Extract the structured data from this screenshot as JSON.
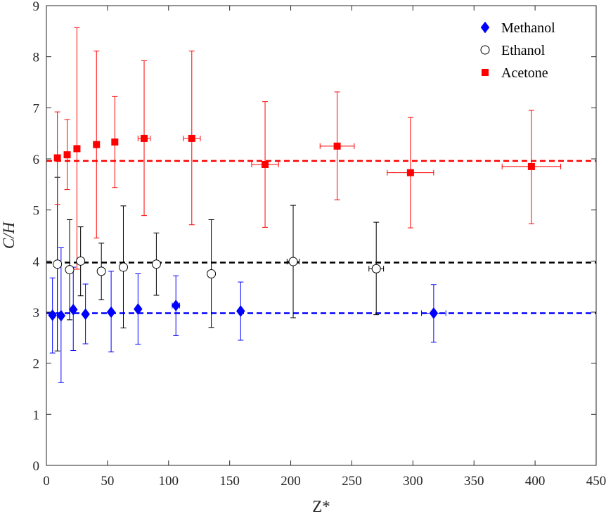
{
  "chart_data": {
    "type": "scatter",
    "xlabel": "Z*",
    "ylabel": "C/H",
    "xlim": [
      0,
      450
    ],
    "ylim": [
      0,
      9
    ],
    "xticks": [
      "0",
      "50",
      "100",
      "150",
      "200",
      "250",
      "300",
      "350",
      "400",
      "450"
    ],
    "yticks": [
      "0",
      "1",
      "2",
      "3",
      "4",
      "5",
      "6",
      "7",
      "8",
      "9"
    ],
    "grid": false,
    "legend_position": "top-right",
    "series": [
      {
        "name": "Methanol",
        "marker": "diamond",
        "color": "#0000ff",
        "reference_line": 2.98,
        "points": [
          {
            "x": 5,
            "y": 2.94,
            "ylo": 2.2,
            "yhi": 3.67,
            "xerr": 0
          },
          {
            "x": 12,
            "y": 2.93,
            "ylo": 1.62,
            "yhi": 4.26,
            "xerr": 0
          },
          {
            "x": 22,
            "y": 3.05,
            "ylo": 2.25,
            "yhi": 3.88,
            "xerr": 0
          },
          {
            "x": 32,
            "y": 2.96,
            "ylo": 2.38,
            "yhi": 3.55,
            "xerr": 0
          },
          {
            "x": 53,
            "y": 3.0,
            "ylo": 2.22,
            "yhi": 3.8,
            "xerr": 0
          },
          {
            "x": 75,
            "y": 3.06,
            "ylo": 2.37,
            "yhi": 3.75,
            "xerr": 0
          },
          {
            "x": 106,
            "y": 3.13,
            "ylo": 2.54,
            "yhi": 3.71,
            "xerr": 3
          },
          {
            "x": 159,
            "y": 3.02,
            "ylo": 2.45,
            "yhi": 3.59,
            "xerr": 0
          },
          {
            "x": 317,
            "y": 2.98,
            "ylo": 2.41,
            "yhi": 3.54,
            "xerr": 10
          }
        ]
      },
      {
        "name": "Ethanol",
        "marker": "circle-open",
        "color": "#000000",
        "reference_line": 3.97,
        "points": [
          {
            "x": 9,
            "y": 3.94,
            "ylo": 2.24,
            "yhi": 5.64,
            "xerr": 0
          },
          {
            "x": 19,
            "y": 3.83,
            "ylo": 2.85,
            "yhi": 4.81,
            "xerr": 0
          },
          {
            "x": 28,
            "y": 4.0,
            "ylo": 3.32,
            "yhi": 4.67,
            "xerr": 0
          },
          {
            "x": 45,
            "y": 3.8,
            "ylo": 3.24,
            "yhi": 4.35,
            "xerr": 0
          },
          {
            "x": 63,
            "y": 3.88,
            "ylo": 2.69,
            "yhi": 5.08,
            "xerr": 0
          },
          {
            "x": 90,
            "y": 3.94,
            "ylo": 3.33,
            "yhi": 4.55,
            "xerr": 0
          },
          {
            "x": 135,
            "y": 3.75,
            "ylo": 2.7,
            "yhi": 4.81,
            "xerr": 0
          },
          {
            "x": 202,
            "y": 3.99,
            "ylo": 2.89,
            "yhi": 5.09,
            "xerr": 5
          },
          {
            "x": 270,
            "y": 3.85,
            "ylo": 2.95,
            "yhi": 4.76,
            "xerr": 6
          }
        ]
      },
      {
        "name": "Acetone",
        "marker": "square",
        "color": "#ff0000",
        "reference_line": 5.96,
        "points": [
          {
            "x": 9,
            "y": 6.02,
            "ylo": 5.11,
            "yhi": 6.92,
            "xerr": 0
          },
          {
            "x": 17,
            "y": 6.08,
            "ylo": 5.4,
            "yhi": 6.77,
            "xerr": 0
          },
          {
            "x": 25,
            "y": 6.2,
            "ylo": 3.84,
            "yhi": 8.57,
            "xerr": 0
          },
          {
            "x": 41,
            "y": 6.28,
            "ylo": 4.45,
            "yhi": 8.11,
            "xerr": 0
          },
          {
            "x": 56,
            "y": 6.33,
            "ylo": 5.44,
            "yhi": 7.22,
            "xerr": 0
          },
          {
            "x": 80,
            "y": 6.4,
            "ylo": 4.89,
            "yhi": 7.92,
            "xerr": 5
          },
          {
            "x": 119,
            "y": 6.4,
            "ylo": 4.71,
            "yhi": 8.11,
            "xerr": 7
          },
          {
            "x": 179,
            "y": 5.89,
            "ylo": 4.66,
            "yhi": 7.12,
            "xerr": 11
          },
          {
            "x": 238,
            "y": 6.25,
            "ylo": 5.2,
            "yhi": 7.31,
            "xerr": 14
          },
          {
            "x": 298,
            "y": 5.73,
            "ylo": 4.65,
            "yhi": 6.81,
            "xerr": 19
          },
          {
            "x": 397,
            "y": 5.85,
            "ylo": 4.73,
            "yhi": 6.95,
            "xerr": 24
          }
        ]
      }
    ]
  }
}
